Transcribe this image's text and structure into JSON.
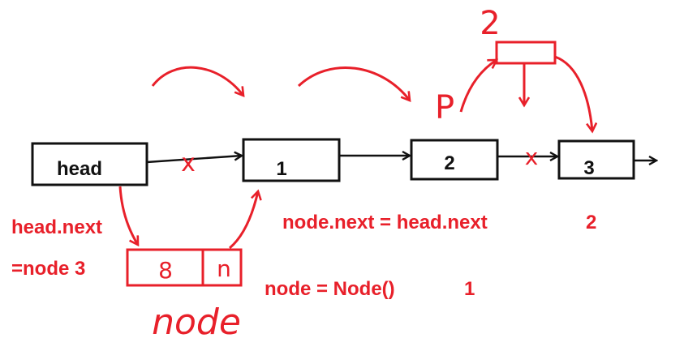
{
  "nodes": {
    "head": "head",
    "n1": "1",
    "n2": "2",
    "n3": "3"
  },
  "new_node": {
    "value": "8",
    "next": "n",
    "label": "node"
  },
  "marks": {
    "pointer_p": "P",
    "step_above": "2",
    "cross": "x"
  },
  "annotations": {
    "head_next_line1": "head.next",
    "head_next_line2": "=node 3",
    "node_next": "node.next = head.next",
    "node_next_step": "2",
    "node_create": "node = Node()",
    "node_create_step": "1"
  },
  "colors": {
    "ink": "#111111",
    "red": "#e8202a"
  }
}
